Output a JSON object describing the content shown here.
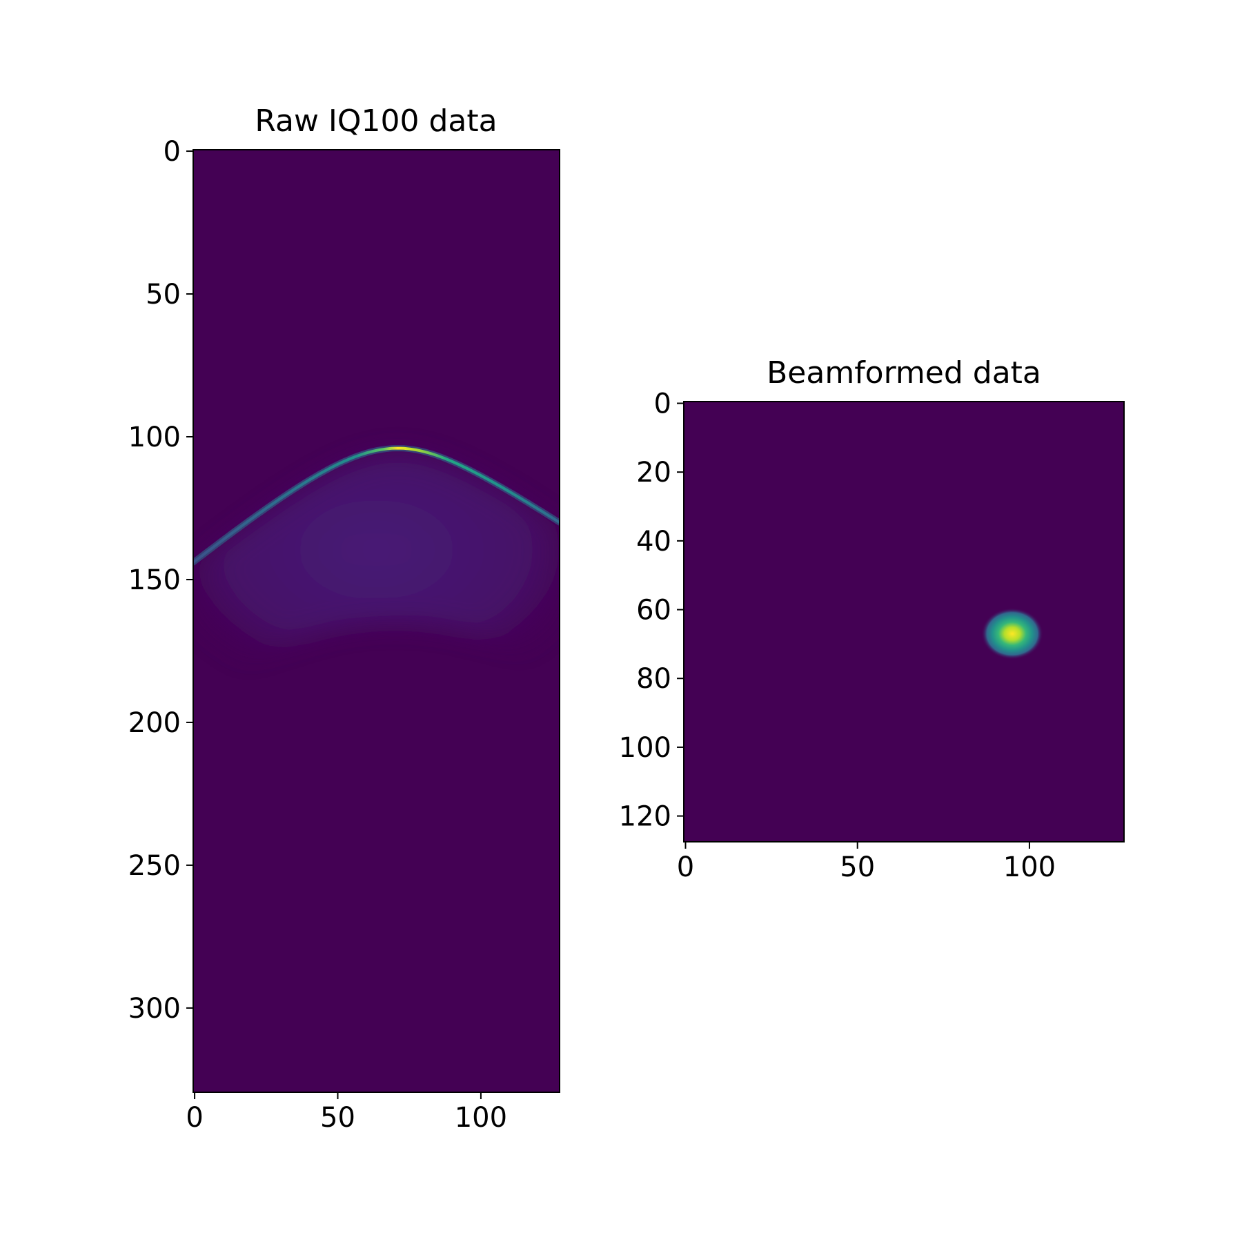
{
  "chart_data": [
    {
      "type": "heatmap",
      "title": "Raw IQ100 data",
      "colormap": "viridis",
      "background_color": "#440154",
      "x_ticks": [
        0,
        50,
        100
      ],
      "y_ticks": [
        0,
        50,
        100,
        150,
        200,
        250,
        300
      ],
      "xlim": [
        -0.5,
        127.5
      ],
      "ylim": [
        329.5,
        -0.5
      ],
      "features": {
        "arc": {
          "apex_x": 71,
          "apex_y": 104,
          "left_edge_y": 144,
          "right_edge_y": 130,
          "peak_intensity": 0.85
        },
        "halo": {
          "center_x": 70,
          "center_y": 130,
          "intensity": 0.12,
          "lower_boundary_apex_y": 165,
          "lower_boundary_edge_y": 190
        }
      }
    },
    {
      "type": "heatmap",
      "title": "Beamformed data",
      "colormap": "viridis",
      "background_color": "#440154",
      "x_ticks": [
        0,
        50,
        100
      ],
      "y_ticks": [
        0,
        20,
        40,
        60,
        80,
        100,
        120
      ],
      "xlim": [
        -0.5,
        127.5
      ],
      "ylim": [
        127.5,
        -0.5
      ],
      "features": {
        "spot": {
          "center_x": 95,
          "center_y": 67,
          "sigma_x": 3,
          "sigma_y": 2.5,
          "peak_intensity": 1.0
        }
      }
    }
  ]
}
